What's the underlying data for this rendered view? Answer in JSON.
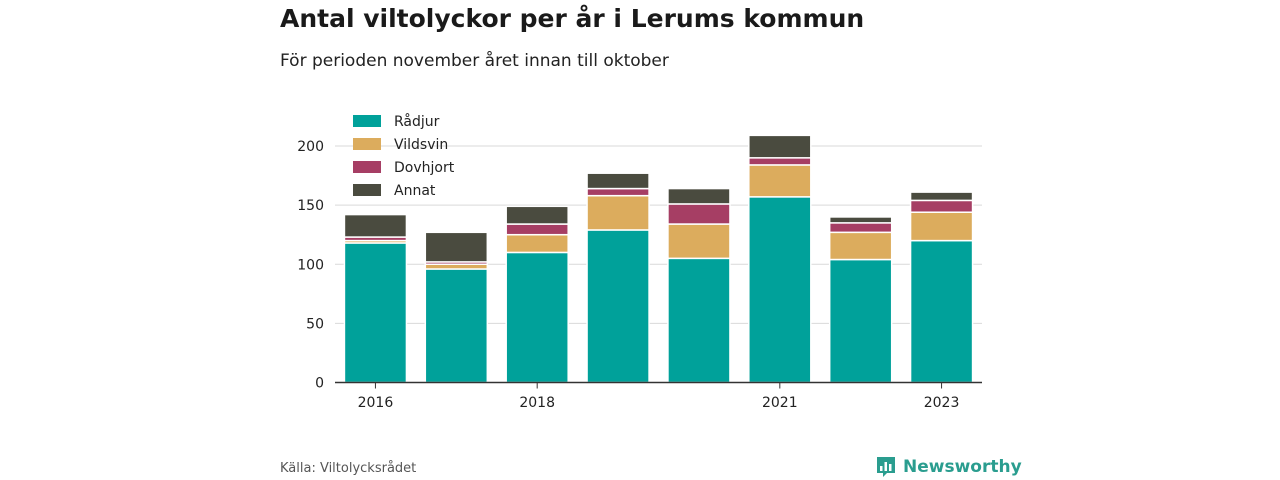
{
  "header": {
    "title": "Antal viltolyckor per år i Lerums kommun",
    "subtitle": "För perioden november året innan till oktober"
  },
  "footer": {
    "source": "Källa: Viltolycksrådet",
    "brand": "Newsworthy"
  },
  "colors": {
    "radjur": "#00a19a",
    "vildsvin": "#dcac5d",
    "dovhjort": "#a63e64",
    "annat": "#4a4b3f",
    "grid": "#d9d9d9",
    "brand": "#2a9d8f"
  },
  "chart_data": {
    "type": "bar",
    "stacked": true,
    "categories": [
      "2016",
      "2017",
      "2018",
      "2019",
      "2020",
      "2021",
      "2022",
      "2023"
    ],
    "tick_labels": [
      "2016",
      "",
      "2018",
      "",
      "",
      "2021",
      "",
      "2023"
    ],
    "series": [
      {
        "name": "Rådjur",
        "values": [
          118,
          96,
          110,
          129,
          105,
          157,
          104,
          120
        ]
      },
      {
        "name": "Vildsvin",
        "values": [
          2,
          4,
          15,
          29,
          29,
          27,
          23,
          24
        ]
      },
      {
        "name": "Dovhjort",
        "values": [
          3,
          2,
          9,
          6,
          17,
          6,
          8,
          10
        ]
      },
      {
        "name": "Annat",
        "values": [
          19,
          25,
          15,
          13,
          13,
          19,
          5,
          7
        ]
      }
    ],
    "ylim": [
      0,
      210
    ],
    "yticks": [
      0,
      50,
      100,
      150,
      200
    ],
    "grid": true,
    "legend": "top-left"
  }
}
